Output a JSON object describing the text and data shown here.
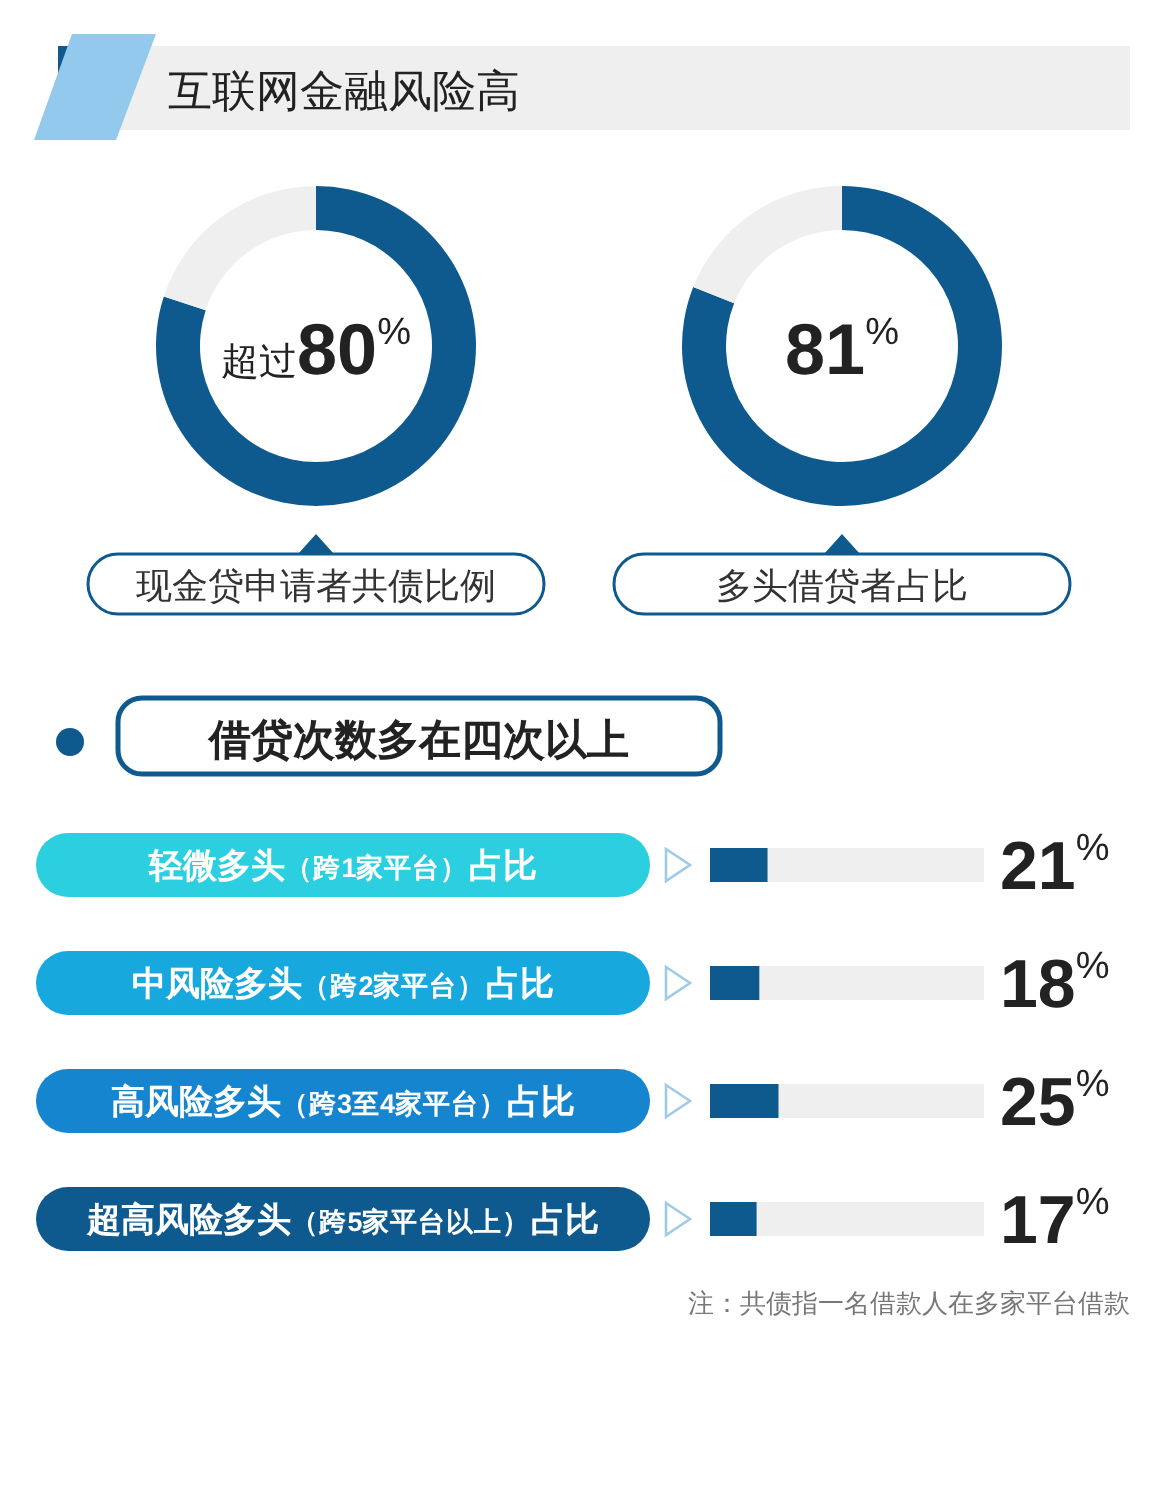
{
  "chart_data": [
    {
      "type": "donut",
      "title": "互联网金融风险高",
      "xlabel": "现金贷申请者共债比例",
      "categories": [
        null,
        null
      ],
      "values": [
        80,
        20
      ],
      "colors": [
        "#0e5a8e",
        "#efefef"
      ],
      "value_labels": [
        "超过80%",
        null
      ]
    },
    {
      "type": "donut",
      "xlabel": "多头借贷者占比",
      "categories": [
        null,
        null
      ],
      "values": [
        81,
        19
      ],
      "colors": [
        "#0e5a8e",
        "#efefef"
      ],
      "value_labels": [
        "81%",
        null
      ]
    },
    {
      "type": "bar",
      "orientation": "horizontal",
      "title": "借贷次数多在四次以上",
      "categories": [
        "轻微多头（跨1家平台）占比",
        "中风险多头（跨2家平台）占比",
        "高风险多头（跨3至4家平台）占比",
        "超高风险多头（跨5家平台以上）占比"
      ],
      "values": [
        21,
        18,
        25,
        17
      ],
      "color": "#0e5a8e",
      "xlim": [
        0,
        100
      ],
      "value_labels": [
        "21%",
        "18%",
        "25%",
        "17%"
      ],
      "tick_labels": "y",
      "annotations": [
        "注：共债指一名借款人在多家平台借款"
      ]
    }
  ]
}
